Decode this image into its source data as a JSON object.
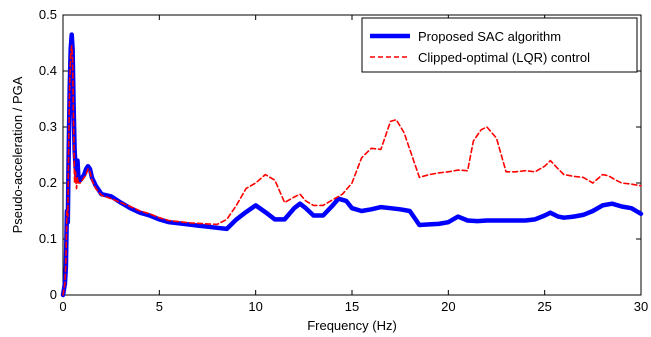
{
  "chart_data": {
    "type": "line",
    "title": "",
    "xlabel": "Frequency (Hz)",
    "ylabel": "Pseudo-acceleration / PGA",
    "xlim": [
      0,
      30
    ],
    "ylim": [
      0,
      0.5
    ],
    "xticks": [
      "0",
      "5",
      "10",
      "15",
      "20",
      "25",
      "30"
    ],
    "yticks": [
      "0",
      "0.1",
      "0.2",
      "0.3",
      "0.4",
      "0.5"
    ],
    "grid": false,
    "legend_position": "top-right",
    "series": [
      {
        "name": "Proposed SAC algorithm",
        "color": "#0000ff",
        "style": "solid-thick",
        "points": [
          [
            0.0,
            0.0
          ],
          [
            0.1,
            0.02
          ],
          [
            0.15,
            0.05
          ],
          [
            0.2,
            0.15
          ],
          [
            0.25,
            0.13
          ],
          [
            0.3,
            0.27
          ],
          [
            0.35,
            0.37
          ],
          [
            0.4,
            0.44
          ],
          [
            0.45,
            0.465
          ],
          [
            0.5,
            0.44
          ],
          [
            0.55,
            0.34
          ],
          [
            0.6,
            0.26
          ],
          [
            0.65,
            0.23
          ],
          [
            0.7,
            0.21
          ],
          [
            0.75,
            0.24
          ],
          [
            0.8,
            0.21
          ],
          [
            0.9,
            0.205
          ],
          [
            1.0,
            0.21
          ],
          [
            1.1,
            0.215
          ],
          [
            1.2,
            0.225
          ],
          [
            1.3,
            0.23
          ],
          [
            1.4,
            0.225
          ],
          [
            1.5,
            0.21
          ],
          [
            1.7,
            0.195
          ],
          [
            2.0,
            0.18
          ],
          [
            2.5,
            0.176
          ],
          [
            3.0,
            0.165
          ],
          [
            3.5,
            0.155
          ],
          [
            4.0,
            0.147
          ],
          [
            4.5,
            0.142
          ],
          [
            5.0,
            0.135
          ],
          [
            5.5,
            0.13
          ],
          [
            6.0,
            0.128
          ],
          [
            6.5,
            0.126
          ],
          [
            7.0,
            0.124
          ],
          [
            7.5,
            0.122
          ],
          [
            8.0,
            0.12
          ],
          [
            8.5,
            0.118
          ],
          [
            9.0,
            0.135
          ],
          [
            9.5,
            0.148
          ],
          [
            10.0,
            0.16
          ],
          [
            10.5,
            0.148
          ],
          [
            11.0,
            0.135
          ],
          [
            11.5,
            0.135
          ],
          [
            12.0,
            0.155
          ],
          [
            12.3,
            0.163
          ],
          [
            12.6,
            0.155
          ],
          [
            13.0,
            0.142
          ],
          [
            13.5,
            0.142
          ],
          [
            14.0,
            0.16
          ],
          [
            14.3,
            0.172
          ],
          [
            14.7,
            0.168
          ],
          [
            15.0,
            0.155
          ],
          [
            15.5,
            0.15
          ],
          [
            16.0,
            0.153
          ],
          [
            16.5,
            0.157
          ],
          [
            17.0,
            0.155
          ],
          [
            17.5,
            0.153
          ],
          [
            18.0,
            0.15
          ],
          [
            18.5,
            0.125
          ],
          [
            19.0,
            0.126
          ],
          [
            19.5,
            0.127
          ],
          [
            20.0,
            0.13
          ],
          [
            20.5,
            0.14
          ],
          [
            21.0,
            0.133
          ],
          [
            21.5,
            0.132
          ],
          [
            22.0,
            0.133
          ],
          [
            23.0,
            0.133
          ],
          [
            24.0,
            0.133
          ],
          [
            24.5,
            0.135
          ],
          [
            25.0,
            0.142
          ],
          [
            25.3,
            0.147
          ],
          [
            25.7,
            0.14
          ],
          [
            26.0,
            0.138
          ],
          [
            26.5,
            0.14
          ],
          [
            27.0,
            0.143
          ],
          [
            27.5,
            0.15
          ],
          [
            28.0,
            0.16
          ],
          [
            28.5,
            0.163
          ],
          [
            29.0,
            0.158
          ],
          [
            29.5,
            0.155
          ],
          [
            30.0,
            0.145
          ]
        ]
      },
      {
        "name": "Clipped-optimal (LQR) control",
        "color": "#ff0000",
        "style": "dashed",
        "points": [
          [
            0.0,
            0.0
          ],
          [
            0.1,
            0.02
          ],
          [
            0.15,
            0.06
          ],
          [
            0.2,
            0.15
          ],
          [
            0.25,
            0.14
          ],
          [
            0.3,
            0.28
          ],
          [
            0.35,
            0.38
          ],
          [
            0.4,
            0.43
          ],
          [
            0.45,
            0.445
          ],
          [
            0.5,
            0.42
          ],
          [
            0.55,
            0.3
          ],
          [
            0.6,
            0.2
          ],
          [
            0.65,
            0.22
          ],
          [
            0.7,
            0.19
          ],
          [
            0.75,
            0.21
          ],
          [
            0.8,
            0.2
          ],
          [
            0.9,
            0.2
          ],
          [
            1.0,
            0.205
          ],
          [
            1.1,
            0.21
          ],
          [
            1.2,
            0.215
          ],
          [
            1.3,
            0.225
          ],
          [
            1.4,
            0.22
          ],
          [
            1.5,
            0.205
          ],
          [
            1.7,
            0.19
          ],
          [
            2.0,
            0.178
          ],
          [
            2.5,
            0.172
          ],
          [
            3.0,
            0.165
          ],
          [
            3.5,
            0.158
          ],
          [
            4.0,
            0.15
          ],
          [
            4.5,
            0.145
          ],
          [
            5.0,
            0.138
          ],
          [
            5.5,
            0.133
          ],
          [
            6.0,
            0.131
          ],
          [
            6.5,
            0.129
          ],
          [
            7.0,
            0.128
          ],
          [
            7.5,
            0.127
          ],
          [
            8.0,
            0.126
          ],
          [
            8.5,
            0.135
          ],
          [
            9.0,
            0.16
          ],
          [
            9.5,
            0.19
          ],
          [
            10.0,
            0.2
          ],
          [
            10.5,
            0.215
          ],
          [
            11.0,
            0.205
          ],
          [
            11.5,
            0.165
          ],
          [
            12.0,
            0.175
          ],
          [
            12.3,
            0.18
          ],
          [
            12.6,
            0.168
          ],
          [
            13.0,
            0.16
          ],
          [
            13.5,
            0.16
          ],
          [
            14.0,
            0.17
          ],
          [
            14.5,
            0.18
          ],
          [
            15.0,
            0.2
          ],
          [
            15.5,
            0.245
          ],
          [
            16.0,
            0.262
          ],
          [
            16.5,
            0.26
          ],
          [
            17.0,
            0.31
          ],
          [
            17.3,
            0.313
          ],
          [
            17.7,
            0.29
          ],
          [
            18.0,
            0.26
          ],
          [
            18.5,
            0.21
          ],
          [
            19.0,
            0.215
          ],
          [
            19.5,
            0.218
          ],
          [
            20.0,
            0.22
          ],
          [
            20.5,
            0.223
          ],
          [
            21.0,
            0.222
          ],
          [
            21.3,
            0.275
          ],
          [
            21.7,
            0.295
          ],
          [
            22.0,
            0.3
          ],
          [
            22.5,
            0.28
          ],
          [
            23.0,
            0.22
          ],
          [
            23.5,
            0.22
          ],
          [
            24.0,
            0.222
          ],
          [
            24.5,
            0.22
          ],
          [
            25.0,
            0.23
          ],
          [
            25.3,
            0.24
          ],
          [
            25.7,
            0.225
          ],
          [
            26.0,
            0.215
          ],
          [
            26.5,
            0.212
          ],
          [
            27.0,
            0.21
          ],
          [
            27.5,
            0.2
          ],
          [
            28.0,
            0.215
          ],
          [
            28.3,
            0.213
          ],
          [
            28.7,
            0.205
          ],
          [
            29.0,
            0.2
          ],
          [
            29.5,
            0.198
          ],
          [
            30.0,
            0.195
          ]
        ]
      }
    ]
  }
}
